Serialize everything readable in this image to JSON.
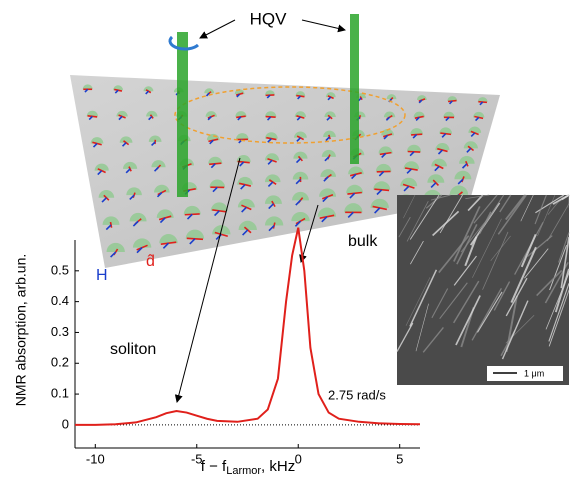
{
  "chart_data": {
    "type": "line",
    "ylabel": "NMR absorption, arb.un.",
    "xlabel": {
      "main": "f − f",
      "sub": "Larmor",
      "unit": ", kHz"
    },
    "x": [
      -11,
      -10,
      -9,
      -8,
      -7,
      -6.5,
      -6,
      -5.5,
      -5,
      -4.5,
      -4,
      -3,
      -2,
      -1.5,
      -1,
      -0.6,
      -0.3,
      0,
      0.3,
      0.6,
      1,
      1.5,
      2,
      3,
      4,
      5,
      6
    ],
    "series": [
      {
        "name": "2.75 rad/s",
        "color": "#e0201b",
        "values": [
          0.0,
          0.0,
          0.002,
          0.008,
          0.025,
          0.038,
          0.045,
          0.04,
          0.03,
          0.02,
          0.013,
          0.01,
          0.02,
          0.05,
          0.15,
          0.4,
          0.55,
          0.64,
          0.5,
          0.25,
          0.1,
          0.04,
          0.02,
          0.01,
          0.005,
          0.003,
          0.002
        ]
      }
    ],
    "xlim": [
      -11,
      6
    ],
    "xticks": [
      -10,
      -5,
      0,
      5
    ],
    "ylim": [
      -0.075,
      0.6
    ],
    "yticks": [
      0,
      0.1,
      0.2,
      0.3,
      0.4,
      0.5
    ],
    "annotations": {
      "bulk": "bulk",
      "soliton": "soliton",
      "hqv": "HQV",
      "h": "H",
      "d": "d̂",
      "scale": "1 μm"
    }
  }
}
